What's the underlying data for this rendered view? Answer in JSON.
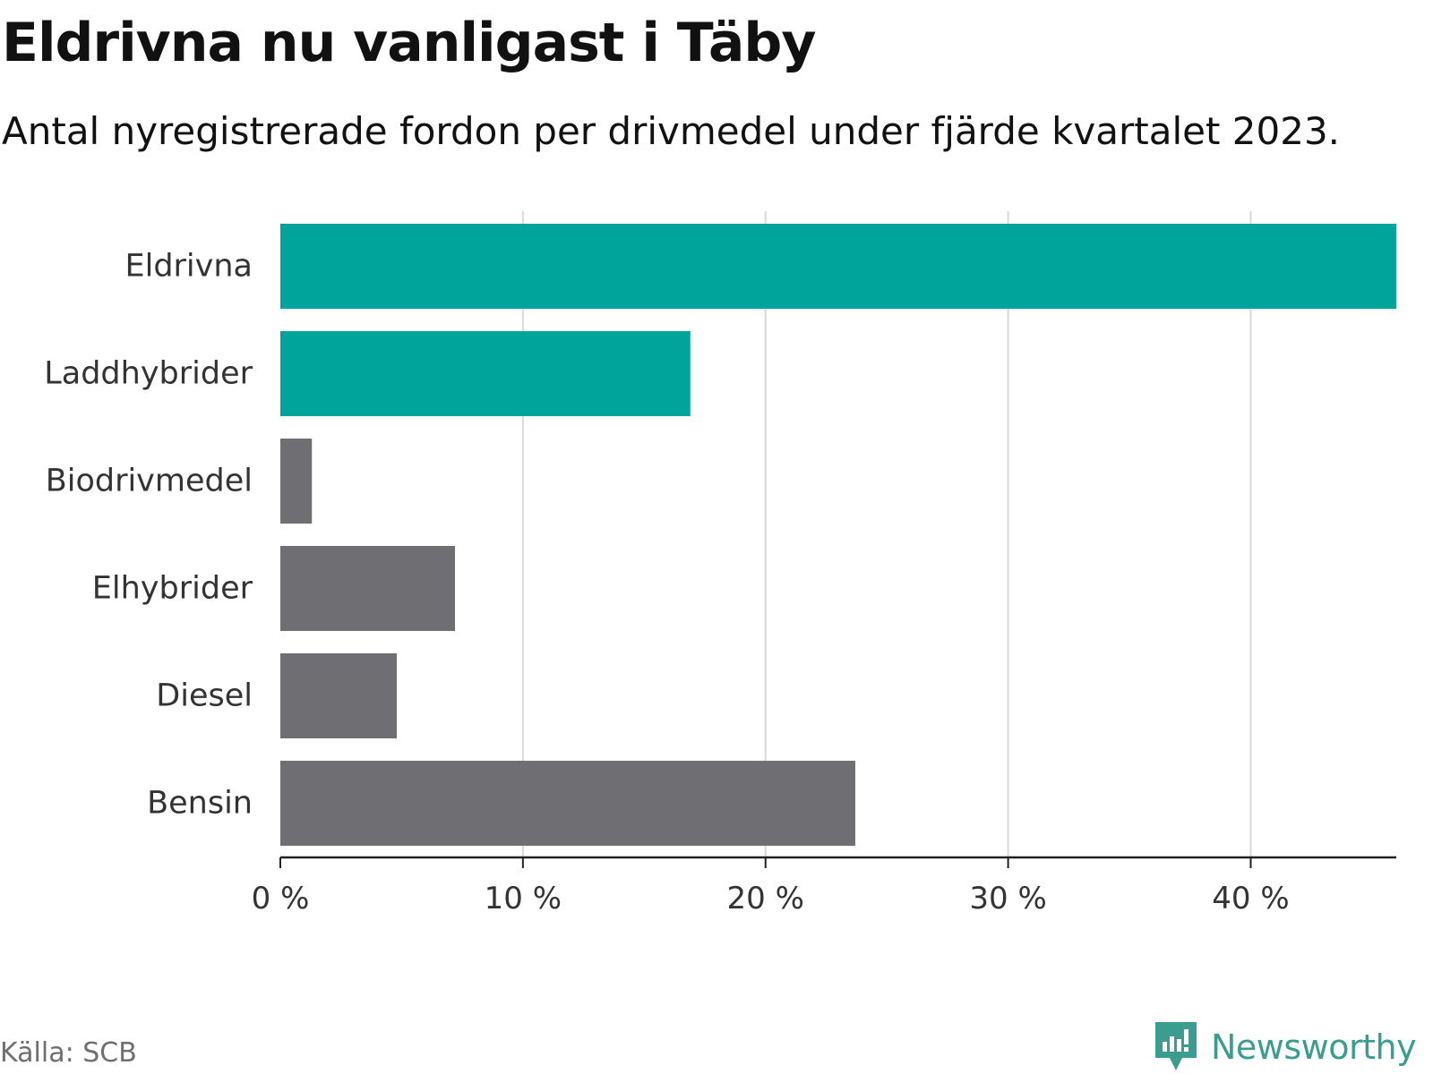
{
  "header": {
    "title": "Eldrivna nu vanligast i Täby",
    "subtitle": "Antal nyregistrerade fordon per drivmedel under fjärde kvartalet 2023."
  },
  "footer": {
    "source": "Källa: SCB",
    "brand": "Newsworthy",
    "brand_icon": "newsworthy-logo-icon"
  },
  "colors": {
    "highlight": "#00a49a",
    "default": "#6e6e73",
    "grid": "#d9d9d9",
    "axis": "#222222",
    "label": "#333333",
    "brand": "#3a9d8f"
  },
  "chart_data": {
    "type": "bar",
    "orientation": "horizontal",
    "title": "Eldrivna nu vanligast i Täby",
    "subtitle": "Antal nyregistrerade fordon per drivmedel under fjärde kvartalet 2023.",
    "xlabel": "",
    "ylabel": "",
    "xlim": [
      0,
      46
    ],
    "grid": true,
    "ticks": [
      0,
      10,
      20,
      30,
      40
    ],
    "tick_labels": [
      "0 %",
      "10 %",
      "20 %",
      "30 %",
      "40 %"
    ],
    "categories": [
      "Eldrivna",
      "Laddhybrider",
      "Biodrivmedel",
      "Elhybrider",
      "Diesel",
      "Bensin"
    ],
    "values": [
      46.0,
      16.9,
      1.3,
      7.2,
      4.8,
      23.7
    ],
    "highlighted": [
      true,
      true,
      false,
      false,
      false,
      false
    ],
    "unit": "%"
  }
}
